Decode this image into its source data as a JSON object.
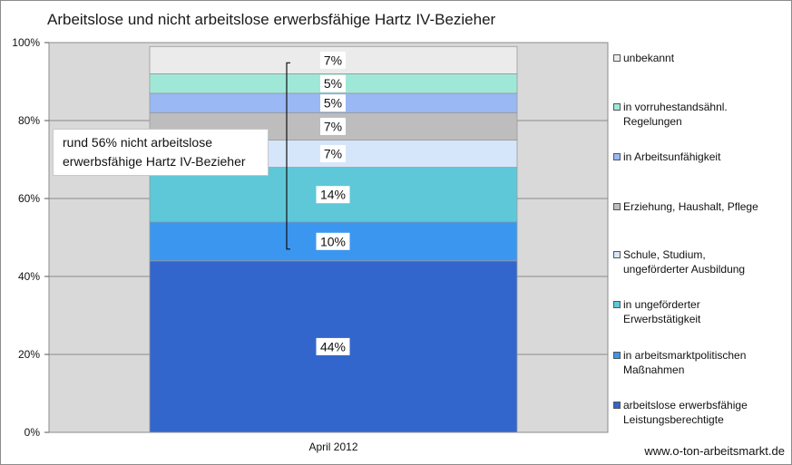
{
  "chart_data": {
    "type": "bar",
    "stacked": true,
    "title": "Arbeitslose und nicht arbeitslose erwerbsfähige Hartz IV-Bezieher",
    "categories": [
      "April 2012"
    ],
    "ylim": [
      0,
      100
    ],
    "y_ticks": [
      "0%",
      "20%",
      "40%",
      "60%",
      "80%",
      "100%"
    ],
    "grid": true,
    "legend_position": "right",
    "series": [
      {
        "name": "arbeitslose erwerbsfähige Leistungsberechtigte",
        "value": 44,
        "label": "44%",
        "color": "#3366cc"
      },
      {
        "name": "in arbeitsmarktpolitischen Maßnahmen",
        "value": 10,
        "label": "10%",
        "color": "#3b96ef"
      },
      {
        "name": "in ungeförderter Erwerbstätigkeit",
        "value": 14,
        "label": "14%",
        "color": "#5ec8d8"
      },
      {
        "name": "Schule, Studium, ungeförderter Ausbildung",
        "value": 7,
        "label": "7%",
        "color": "#d6e6fa"
      },
      {
        "name": "Erziehung, Haushalt, Pflege",
        "value": 7,
        "label": "7%",
        "color": "#bdbdbd"
      },
      {
        "name": "in Arbeitsunfähigkeit",
        "value": 5,
        "label": "5%",
        "color": "#99b8f4"
      },
      {
        "name": "in vorruhestandsähnl. Regelungen",
        "value": 5,
        "label": "5%",
        "color": "#9fe8d8"
      },
      {
        "name": "unbekannt",
        "value": 7,
        "label": "7%",
        "color": "#ebebeb"
      }
    ],
    "annotation": "rund 56% nicht arbeitslose erwerbsfähige Hartz IV-Bezieher",
    "legend_labels": [
      "unbekannt",
      "in vorruhestandsähnl.\nRegelungen",
      "in Arbeitsunfähigkeit",
      "Erziehung, Haushalt, Pflege",
      "Schule, Studium,\nungeförderter Ausbildung",
      "in ungeförderter\nErwerbstätigkeit",
      "in arbeitsmarktpolitischen\nMaßnahmen",
      "arbeitslose erwerbsfähige\nLeistungsberechtigte"
    ]
  },
  "colors": {
    "plot_background": "#d9d9d9",
    "gridline": "#8c8c8c"
  },
  "footer": "www.o-ton-arbeitsmarkt.de"
}
